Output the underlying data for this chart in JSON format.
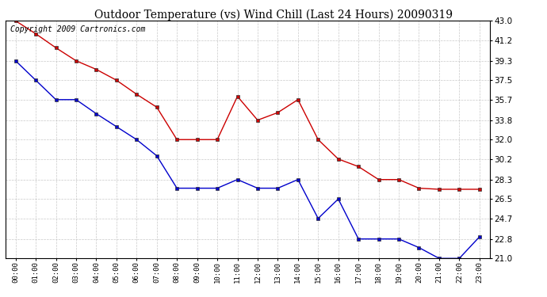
{
  "title": "Outdoor Temperature (vs) Wind Chill (Last 24 Hours) 20090319",
  "copyright": "Copyright 2009 Cartronics.com",
  "hours": [
    "00:00",
    "01:00",
    "02:00",
    "03:00",
    "04:00",
    "05:00",
    "06:00",
    "07:00",
    "08:00",
    "09:00",
    "10:00",
    "11:00",
    "12:00",
    "13:00",
    "14:00",
    "15:00",
    "16:00",
    "17:00",
    "18:00",
    "19:00",
    "20:00",
    "21:00",
    "22:00",
    "23:00"
  ],
  "temp": [
    43.0,
    41.8,
    40.5,
    39.3,
    38.5,
    37.5,
    36.2,
    35.0,
    32.0,
    32.0,
    32.0,
    36.0,
    33.8,
    34.5,
    35.7,
    32.0,
    30.2,
    29.5,
    28.3,
    28.3,
    27.5,
    27.4,
    27.4,
    27.4
  ],
  "windchill": [
    39.3,
    37.5,
    35.7,
    35.7,
    34.4,
    33.2,
    32.0,
    30.5,
    27.5,
    27.5,
    27.5,
    28.3,
    27.5,
    27.5,
    28.3,
    24.7,
    26.5,
    22.8,
    22.8,
    22.8,
    22.0,
    21.0,
    21.0,
    23.0
  ],
  "temp_color": "#cc0000",
  "windchill_color": "#0000cc",
  "bg_color": "#ffffff",
  "grid_color": "#bbbbbb",
  "ylim_min": 21.0,
  "ylim_max": 43.0,
  "yticks": [
    43.0,
    41.2,
    39.3,
    37.5,
    35.7,
    33.8,
    32.0,
    30.2,
    28.3,
    26.5,
    24.7,
    22.8,
    21.0
  ],
  "title_fontsize": 10,
  "copyright_fontsize": 7
}
